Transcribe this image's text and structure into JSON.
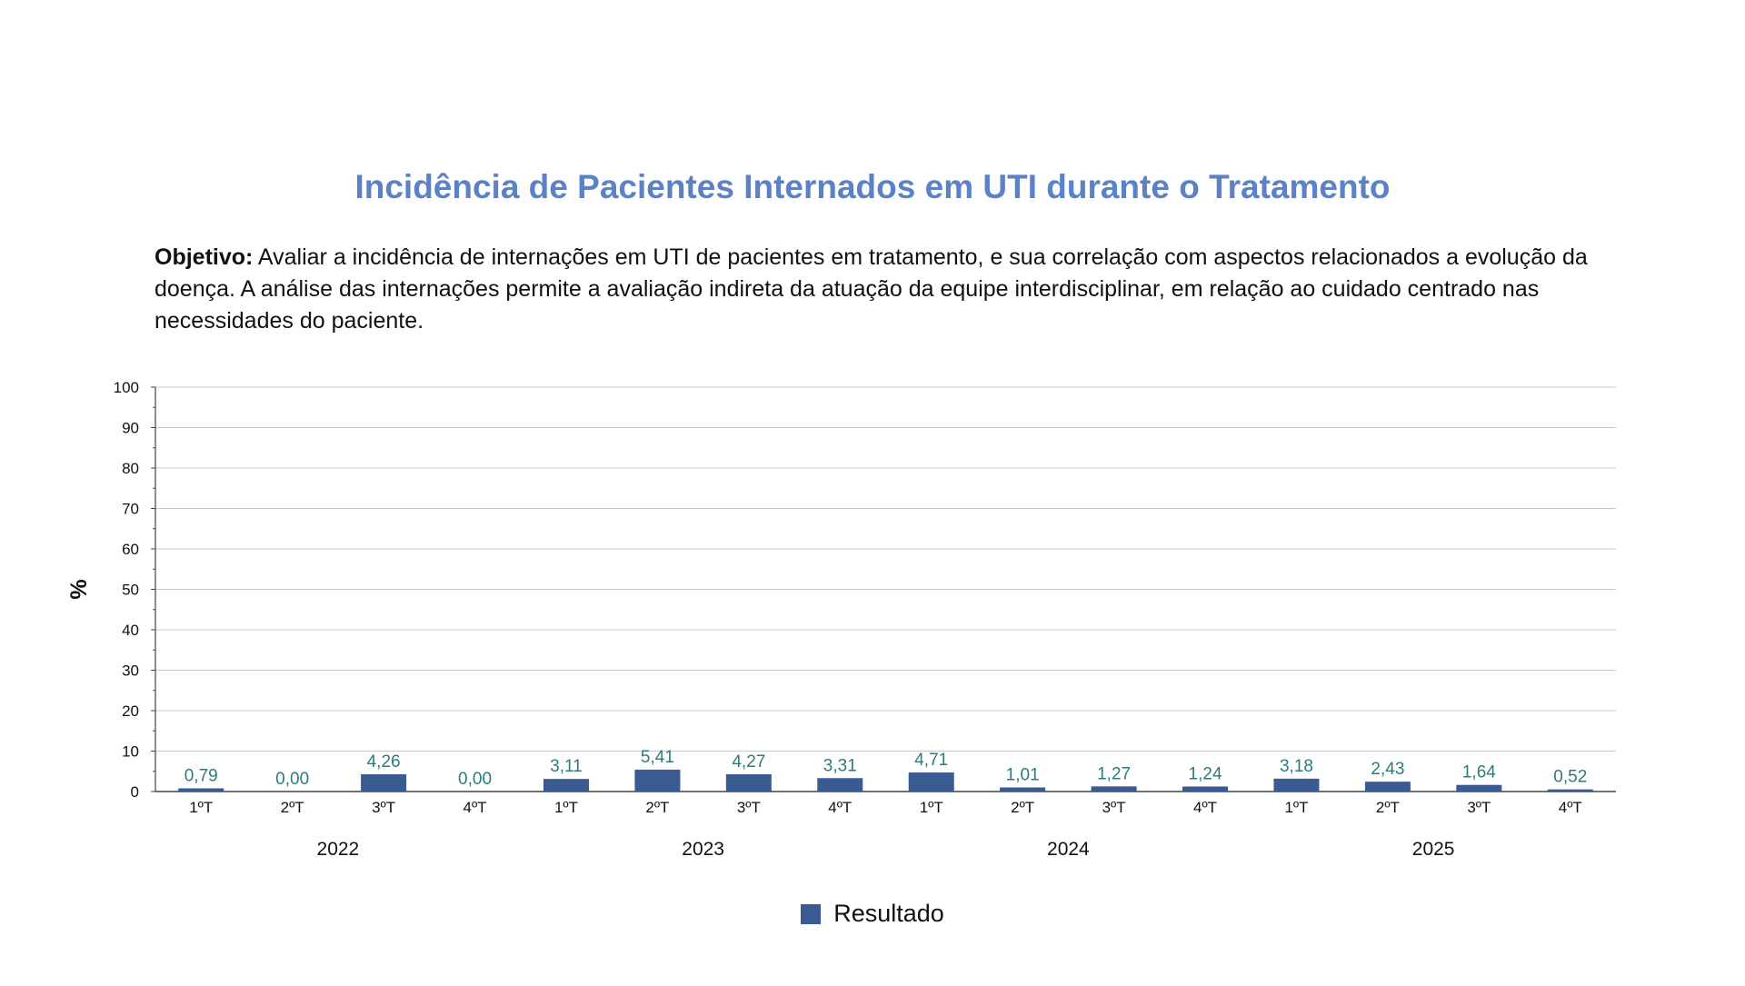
{
  "page": {
    "title": "Incidência de Pacientes Internados em UTI durante o Tratamento",
    "objective_label": "Objetivo:",
    "objective_text": "Avaliar a incidência de internações em UTI de pacientes em tratamento, e sua correlação com aspectos relacionados a evolução da doença. A análise das internações permite a avaliação indireta da atuação da equipe interdisciplinar, em relação ao cuidado centrado nas necessidades do paciente."
  },
  "colors": {
    "title": "#5b82c6",
    "bar": "#3a5a92",
    "value_label": "#2e7a7a",
    "grid": "#c8c8c8",
    "axis": "#444444"
  },
  "chart_data": {
    "type": "bar",
    "title": "",
    "xlabel": "",
    "ylabel": "%",
    "ylim": [
      0,
      100
    ],
    "yticks": [
      0,
      10,
      20,
      30,
      40,
      50,
      60,
      70,
      80,
      90,
      100
    ],
    "grid": true,
    "legend_position": "bottom-center",
    "categories": [
      "1ºT",
      "2ºT",
      "3ºT",
      "4ºT",
      "1ºT",
      "2ºT",
      "3ºT",
      "4ºT",
      "1ºT",
      "2ºT",
      "3ºT",
      "4ºT",
      "1ºT",
      "2ºT",
      "3ºT",
      "4ºT"
    ],
    "groups": [
      {
        "label": "2022",
        "count": 4
      },
      {
        "label": "2023",
        "count": 4
      },
      {
        "label": "2024",
        "count": 4
      },
      {
        "label": "2025",
        "count": 4
      }
    ],
    "series": [
      {
        "name": "Resultado",
        "values": [
          0.79,
          0.0,
          4.26,
          0.0,
          3.11,
          5.41,
          4.27,
          3.31,
          4.71,
          1.01,
          1.27,
          1.24,
          3.18,
          2.43,
          1.64,
          0.52
        ],
        "labels": [
          "0,79",
          "0,00",
          "4,26",
          "0,00",
          "3,11",
          "5,41",
          "4,27",
          "3,31",
          "4,71",
          "1,01",
          "1,27",
          "1,24",
          "3,18",
          "2,43",
          "1,64",
          "0,52"
        ]
      }
    ]
  }
}
